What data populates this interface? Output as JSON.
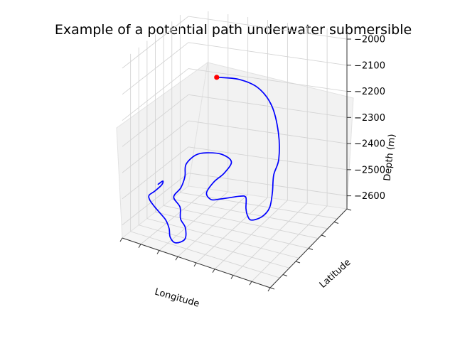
{
  "chart_data": {
    "type": "line",
    "projection": "3d",
    "title": "Example of a potential path underwater submersible",
    "xlabel": "Longitude",
    "ylabel": "Latitude",
    "zlabel": "Depth (m)",
    "x_tick_labels_shown": false,
    "y_tick_labels_shown": false,
    "zlim": [
      -2650,
      -1970
    ],
    "z_ticks": [
      -2000,
      -2100,
      -2200,
      -2300,
      -2400,
      -2500,
      -2600
    ],
    "z_tick_labels": [
      "−2000",
      "−2100",
      "−2200",
      "−2300",
      "−2400",
      "−2500",
      "−2600"
    ],
    "grid": true,
    "pane_color": "#f2f2f2",
    "line_color": "#0000ff",
    "start_marker_color": "#ff0000",
    "series": [
      {
        "marker": "start",
        "points": [
          [
            0.2,
            0.95,
            -2205
          ],
          [
            0.34,
            0.95,
            -2200
          ],
          [
            0.47,
            0.93,
            -2215
          ],
          [
            0.58,
            0.88,
            -2260
          ],
          [
            0.66,
            0.8,
            -2335
          ],
          [
            0.7,
            0.72,
            -2410
          ],
          [
            0.71,
            0.63,
            -2445
          ],
          [
            0.74,
            0.55,
            -2485
          ],
          [
            0.76,
            0.47,
            -2520
          ],
          [
            0.74,
            0.41,
            -2540
          ],
          [
            0.69,
            0.37,
            -2550
          ],
          [
            0.65,
            0.4,
            -2548
          ],
          [
            0.62,
            0.44,
            -2535
          ],
          [
            0.6,
            0.48,
            -2505
          ],
          [
            0.57,
            0.46,
            -2500
          ],
          [
            0.52,
            0.43,
            -2505
          ],
          [
            0.47,
            0.4,
            -2510
          ],
          [
            0.42,
            0.38,
            -2515
          ],
          [
            0.38,
            0.4,
            -2500
          ],
          [
            0.4,
            0.46,
            -2470
          ],
          [
            0.44,
            0.52,
            -2445
          ],
          [
            0.45,
            0.6,
            -2420
          ],
          [
            0.38,
            0.62,
            -2405
          ],
          [
            0.3,
            0.58,
            -2400
          ],
          [
            0.24,
            0.55,
            -2410
          ],
          [
            0.2,
            0.5,
            -2440
          ],
          [
            0.22,
            0.44,
            -2470
          ],
          [
            0.22,
            0.38,
            -2500
          ],
          [
            0.2,
            0.32,
            -2525
          ],
          [
            0.26,
            0.28,
            -2545
          ],
          [
            0.3,
            0.2,
            -2565
          ],
          [
            0.36,
            0.14,
            -2575
          ],
          [
            0.4,
            0.05,
            -2590
          ],
          [
            0.36,
            0.0,
            -2600
          ],
          [
            0.31,
            0.03,
            -2595
          ],
          [
            0.27,
            0.1,
            -2585
          ],
          [
            0.22,
            0.16,
            -2575
          ],
          [
            0.16,
            0.2,
            -2565
          ],
          [
            0.1,
            0.25,
            -2560
          ],
          [
            0.05,
            0.3,
            -2555
          ],
          [
            0.02,
            0.36,
            -2555
          ],
          [
            0.03,
            0.42,
            -2550
          ],
          [
            0.05,
            0.48,
            -2535
          ],
          [
            0.04,
            0.52,
            -2530
          ],
          [
            0.02,
            0.49,
            -2540
          ]
        ]
      }
    ]
  }
}
